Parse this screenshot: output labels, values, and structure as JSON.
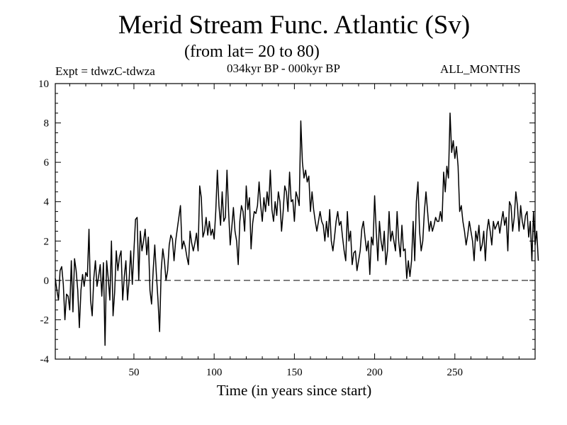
{
  "title": "Merid Stream Func. Atlantic (Sv)",
  "subtitle": "(from lat= 20 to 80)",
  "experiment": "Expt = tdwzC-tdwza",
  "period": "034kyr BP - 000kyr BP",
  "months": "ALL_MONTHS",
  "chart_data": {
    "type": "line",
    "title": "Merid Stream Func. Atlantic (Sv)",
    "subtitle": "(from lat= 20 to 80)",
    "xlabel": "Time (in years since start)",
    "ylabel": "",
    "xlim": [
      1,
      300
    ],
    "ylim": [
      -4,
      10
    ],
    "xticks": [
      50,
      100,
      150,
      200,
      250
    ],
    "yticks": [
      -4,
      -2,
      0,
      2,
      4,
      6,
      8,
      10
    ],
    "reference_line": {
      "y": 0,
      "style": "dashed"
    },
    "series": [
      {
        "name": "tdwzC-tdwza",
        "x_start": 1,
        "x_step": 1,
        "values": [
          0.1,
          -0.5,
          -1.0,
          0.5,
          0.7,
          -0.2,
          -2.0,
          -0.7,
          -0.8,
          -1.5,
          1.0,
          -1.6,
          1.1,
          0.5,
          -0.5,
          -2.4,
          -0.5,
          0.3,
          -0.3,
          0.4,
          0.2,
          2.6,
          -1.0,
          -1.8,
          0.1,
          1.0,
          -0.3,
          0.2,
          0.8,
          -0.8,
          0.9,
          -3.3,
          1.0,
          0.1,
          -1.0,
          2.0,
          -1.8,
          -0.6,
          1.5,
          0.5,
          1.2,
          1.5,
          -1.0,
          0.2,
          1.0,
          -1.0,
          0.0,
          1.5,
          -0.2,
          1.5,
          3.1,
          3.2,
          0.0,
          2.5,
          1.5,
          2.0,
          2.6,
          1.3,
          2.2,
          -0.5,
          -1.2,
          0.5,
          1.8,
          0.3,
          -1.0,
          -2.6,
          0.5,
          1.6,
          1.0,
          0.0,
          0.5,
          1.8,
          2.3,
          2.1,
          1.0,
          2.0,
          2.6,
          3.2,
          3.8,
          1.6,
          2.0,
          1.7,
          1.2,
          0.8,
          2.5,
          1.9,
          1.5,
          1.9,
          2.4,
          1.5,
          4.8,
          4.2,
          2.2,
          2.5,
          3.2,
          2.3,
          3.0,
          2.3,
          2.6,
          2.1,
          3.5,
          5.6,
          3.8,
          2.8,
          4.5,
          3.0,
          3.2,
          5.6,
          3.5,
          1.8,
          2.7,
          3.7,
          2.5,
          2.0,
          0.8,
          3.0,
          3.8,
          3.5,
          2.5,
          4.8,
          3.6,
          4.2,
          1.6,
          2.9,
          3.5,
          3.4,
          3.8,
          5.0,
          3.8,
          3.0,
          4.2,
          3.5,
          4.5,
          3.8,
          5.6,
          3.6,
          3.0,
          4.0,
          3.3,
          4.5,
          4.0,
          2.5,
          3.5,
          4.8,
          4.5,
          3.5,
          5.5,
          4.0,
          4.1,
          3.0,
          4.5,
          4.2,
          3.8,
          8.1,
          6.0,
          5.2,
          5.6,
          5.0,
          5.3,
          3.5,
          4.5,
          3.6,
          3.0,
          2.5,
          3.0,
          3.5,
          3.0,
          2.8,
          2.0,
          3.0,
          2.2,
          3.6,
          2.0,
          1.5,
          2.2,
          3.0,
          3.5,
          2.8,
          3.0,
          2.2,
          1.5,
          1.0,
          3.5,
          2.0,
          2.5,
          0.8,
          1.4,
          1.5,
          0.5,
          1.0,
          1.5,
          2.6,
          3.0,
          2.2,
          1.5,
          2.0,
          0.3,
          2.2,
          1.8,
          4.3,
          2.5,
          1.0,
          3.0,
          2.0,
          1.5,
          2.5,
          0.8,
          1.5,
          3.5,
          2.0,
          2.5,
          2.0,
          1.5,
          3.5,
          2.0,
          1.2,
          2.8,
          1.5,
          1.6,
          0.1,
          1.0,
          0.2,
          1.0,
          3.0,
          1.0,
          4.0,
          5.0,
          2.5,
          1.5,
          2.0,
          3.5,
          4.5,
          3.5,
          2.5,
          3.0,
          2.5,
          2.8,
          3.2,
          3.0,
          3.0,
          3.5,
          3.0,
          5.5,
          4.5,
          5.8,
          5.2,
          8.5,
          6.5,
          7.1,
          6.2,
          6.8,
          5.8,
          3.5,
          3.8,
          3.0,
          2.5,
          1.8,
          2.3,
          3.0,
          2.5,
          2.0,
          1.0,
          2.5,
          2.0,
          2.8,
          1.5,
          1.8,
          2.5,
          1.0,
          2.5,
          3.1,
          2.5,
          1.8,
          3.0,
          2.6,
          2.8,
          3.0,
          2.4,
          3.0,
          3.5,
          2.8,
          3.2,
          1.5,
          4.0,
          3.8,
          2.5,
          3.2,
          4.5,
          3.8,
          2.5,
          3.8,
          3.0,
          2.6,
          3.3,
          3.5,
          2.2,
          3.0,
          1.0,
          3.5,
          1.8,
          2.5,
          1.0
        ]
      }
    ]
  }
}
